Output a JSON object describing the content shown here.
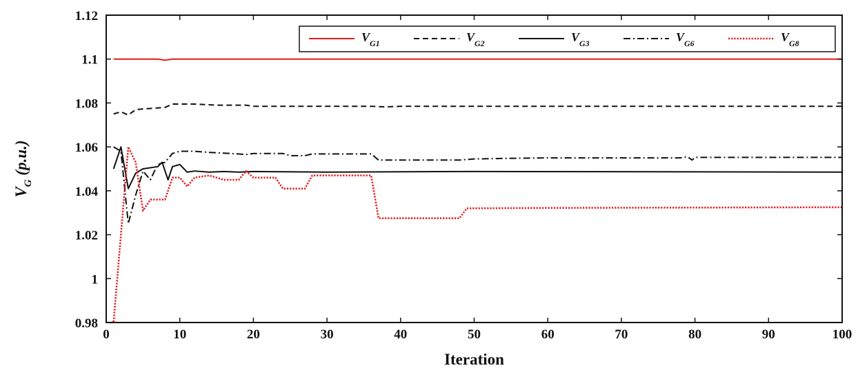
{
  "chart_data": {
    "type": "line",
    "title": "",
    "xlabel": "Iteration",
    "ylabel": {
      "main": "V",
      "sub": "G",
      "suffix": " (p.u.)"
    },
    "xlim": [
      0,
      100
    ],
    "ylim": [
      0.98,
      1.12
    ],
    "xticks": [
      0,
      10,
      20,
      30,
      40,
      50,
      60,
      70,
      80,
      90,
      100
    ],
    "yticks": [
      0.98,
      1,
      1.02,
      1.04,
      1.06,
      1.08,
      1.1,
      1.12
    ],
    "ytick_labels": [
      "0.98",
      "1",
      "1.02",
      "1.04",
      "1.06",
      "1.08",
      "1.1",
      "1.12"
    ],
    "grid": false,
    "legend_position": "top-right",
    "series": [
      {
        "name": "VG1",
        "label_main": "V",
        "label_sub": "G1",
        "color": "#e41a1c",
        "dash": "solid",
        "points": [
          [
            1,
            1.1
          ],
          [
            7,
            1.1
          ],
          [
            8,
            1.0995
          ],
          [
            9,
            1.1
          ],
          [
            100,
            1.1
          ]
        ]
      },
      {
        "name": "VG2",
        "label_main": "V",
        "label_sub": "G2",
        "color": "#111111",
        "dash": "dashed",
        "points": [
          [
            1,
            1.075
          ],
          [
            2,
            1.076
          ],
          [
            3,
            1.0745
          ],
          [
            4,
            1.077
          ],
          [
            6,
            1.0775
          ],
          [
            8,
            1.078
          ],
          [
            9,
            1.0795
          ],
          [
            12,
            1.0795
          ],
          [
            15,
            1.079
          ],
          [
            19,
            1.079
          ],
          [
            20,
            1.0785
          ],
          [
            36,
            1.0785
          ],
          [
            38,
            1.0782
          ],
          [
            40,
            1.0785
          ],
          [
            100,
            1.0785
          ]
        ]
      },
      {
        "name": "VG3",
        "label_main": "V",
        "label_sub": "G3",
        "color": "#111111",
        "dash": "solid",
        "points": [
          [
            1,
            1.05
          ],
          [
            2,
            1.06
          ],
          [
            3,
            1.041
          ],
          [
            4,
            1.048
          ],
          [
            5,
            1.05
          ],
          [
            7,
            1.051
          ],
          [
            7.6,
            1.053
          ],
          [
            8.4,
            1.045
          ],
          [
            9,
            1.051
          ],
          [
            10,
            1.052
          ],
          [
            11,
            1.0485
          ],
          [
            12,
            1.049
          ],
          [
            14,
            1.0485
          ],
          [
            16,
            1.0488
          ],
          [
            18,
            1.0485
          ],
          [
            20,
            1.0488
          ],
          [
            30,
            1.0485
          ],
          [
            50,
            1.0488
          ],
          [
            100,
            1.0485
          ]
        ]
      },
      {
        "name": "VG6",
        "label_main": "V",
        "label_sub": "G6",
        "color": "#111111",
        "dash": "dashdot",
        "points": [
          [
            1,
            1.06
          ],
          [
            2,
            1.058
          ],
          [
            3,
            1.025
          ],
          [
            4,
            1.038
          ],
          [
            5,
            1.049
          ],
          [
            6,
            1.045
          ],
          [
            7,
            1.052
          ],
          [
            8,
            1.053
          ],
          [
            9,
            1.057
          ],
          [
            10,
            1.058
          ],
          [
            12,
            1.058
          ],
          [
            14,
            1.0575
          ],
          [
            18,
            1.0568
          ],
          [
            19,
            1.0565
          ],
          [
            20,
            1.057
          ],
          [
            24,
            1.057
          ],
          [
            25,
            1.056
          ],
          [
            27,
            1.056
          ],
          [
            28,
            1.0568
          ],
          [
            36,
            1.0568
          ],
          [
            37,
            1.054
          ],
          [
            48,
            1.054
          ],
          [
            50,
            1.0545
          ],
          [
            55,
            1.0548
          ],
          [
            60,
            1.055
          ],
          [
            78,
            1.055
          ],
          [
            79,
            1.0555
          ],
          [
            79.6,
            1.054
          ],
          [
            80,
            1.0552
          ],
          [
            100,
            1.0552
          ]
        ]
      },
      {
        "name": "VG8",
        "label_main": "V",
        "label_sub": "G8",
        "color": "#e41a1c",
        "dash": "dotted",
        "points": [
          [
            0.3,
            0.98
          ],
          [
            1,
            0.98
          ],
          [
            2,
            1.02
          ],
          [
            3,
            1.06
          ],
          [
            4,
            1.053
          ],
          [
            5,
            1.031
          ],
          [
            6,
            1.036
          ],
          [
            8,
            1.036
          ],
          [
            9,
            1.046
          ],
          [
            10,
            1.046
          ],
          [
            11,
            1.042
          ],
          [
            12,
            1.046
          ],
          [
            14,
            1.047
          ],
          [
            16,
            1.045
          ],
          [
            18,
            1.045
          ],
          [
            19,
            1.049
          ],
          [
            20,
            1.046
          ],
          [
            23,
            1.046
          ],
          [
            24,
            1.041
          ],
          [
            27,
            1.041
          ],
          [
            28,
            1.047
          ],
          [
            36,
            1.047
          ],
          [
            37,
            1.0275
          ],
          [
            48,
            1.0275
          ],
          [
            49,
            1.032
          ],
          [
            60,
            1.0322
          ],
          [
            100,
            1.0325
          ]
        ]
      }
    ]
  }
}
